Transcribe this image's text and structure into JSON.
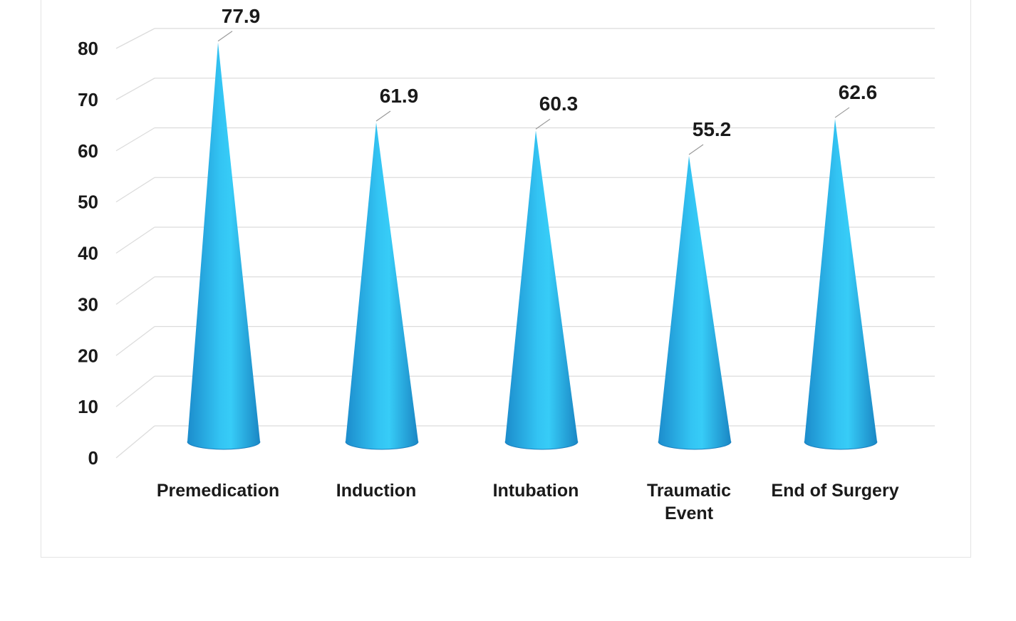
{
  "chart_data": {
    "type": "bar",
    "bar_shape": "cone",
    "categories": [
      "Premedication",
      "Induction",
      "Intubation",
      "Traumatic Event",
      "End of Surgery"
    ],
    "category_lines": [
      [
        "Premedication"
      ],
      [
        "Induction"
      ],
      [
        "Intubation"
      ],
      [
        "Traumatic",
        "Event"
      ],
      [
        "End of Surgery"
      ]
    ],
    "values": [
      77.9,
      61.9,
      60.3,
      55.2,
      62.6
    ],
    "data_labels": [
      "77.9",
      "61.9",
      "60.3",
      "55.2",
      "62.6"
    ],
    "yticks": [
      "0",
      "10",
      "20",
      "30",
      "40",
      "50",
      "60",
      "70",
      "80"
    ],
    "ylim": [
      0,
      80
    ],
    "grid": true,
    "legend": "none",
    "colors": {
      "cone_dark": "#1e8fd0",
      "cone_light": "#35c7f5",
      "grid": "#dcdcdc"
    }
  }
}
